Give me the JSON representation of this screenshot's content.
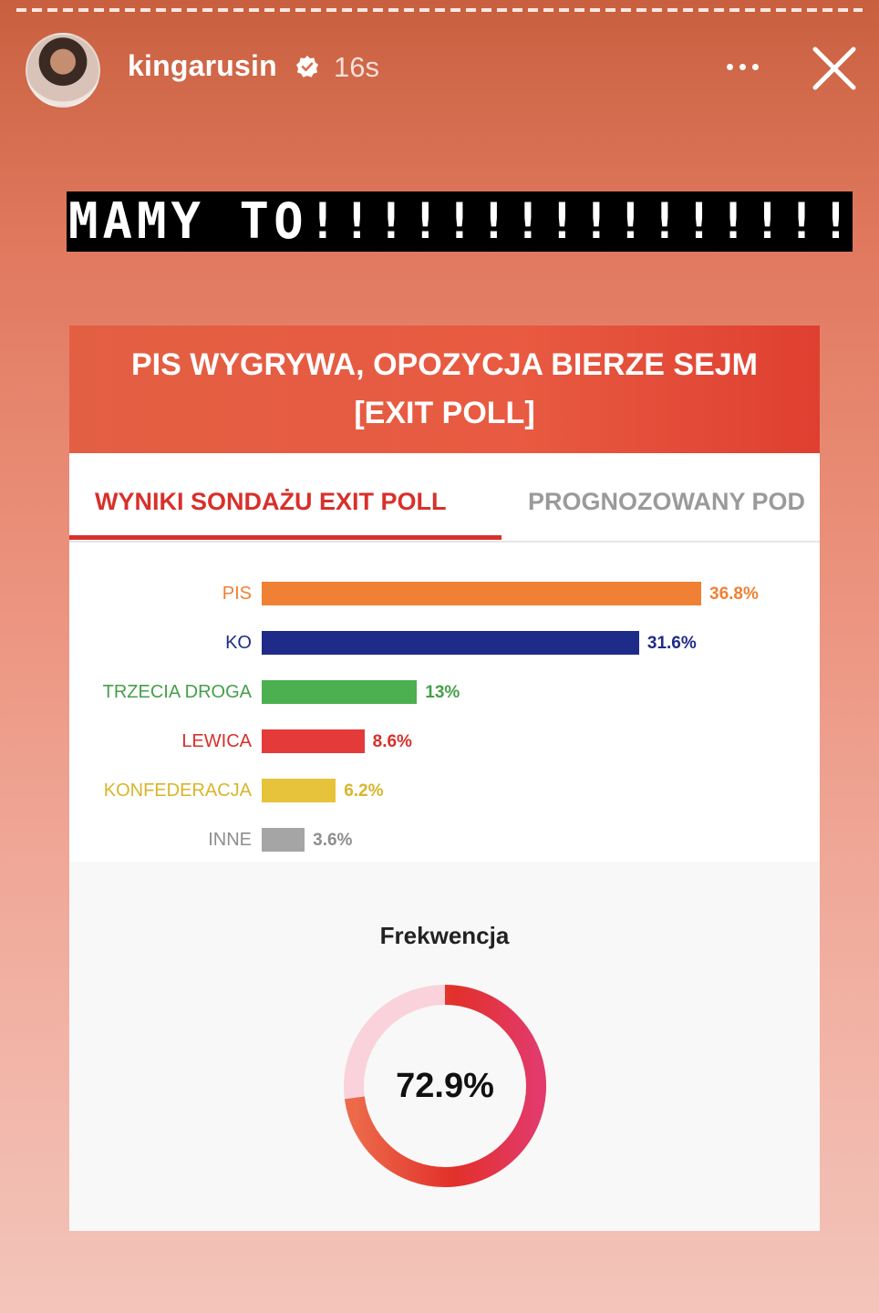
{
  "story": {
    "username": "kingarusin",
    "timestamp": "16s",
    "caption": "MAMY TO!!!!!!!!!!!!!!!!"
  },
  "card": {
    "title": "PIS WYGRYWA, OPOZYCJA BIERZE SEJM [EXIT POLL]",
    "tabs": [
      {
        "label": "WYNIKI SONDAŻU EXIT POLL"
      },
      {
        "label": "PROGNOZOWANY POD"
      }
    ]
  },
  "chart_data": {
    "type": "bar",
    "orientation": "horizontal",
    "categories": [
      "PIS",
      "KO",
      "TRZECIA DROGA",
      "LEWICA",
      "KONFEDERACJA",
      "INNE"
    ],
    "values": [
      36.8,
      31.6,
      13,
      8.6,
      6.2,
      3.6
    ],
    "value_labels": [
      "36.8%",
      "31.6%",
      "13%",
      "8.6%",
      "6.2%",
      "3.6%"
    ],
    "colors": [
      "#f08134",
      "#1f2b88",
      "#4caf50",
      "#e53a3a",
      "#e6c33a",
      "#a5a5a5"
    ],
    "label_colors": [
      "#f08134",
      "#1f2b88",
      "#45a049",
      "#d8302b",
      "#d9b52a",
      "#8e8e8e"
    ],
    "xlim": [
      0,
      40
    ]
  },
  "turnout": {
    "title": "Frekwencja",
    "value": 72.9,
    "value_label": "72.9%"
  },
  "colors": {
    "accent": "#d8302b",
    "header_red": "#e35f43"
  }
}
